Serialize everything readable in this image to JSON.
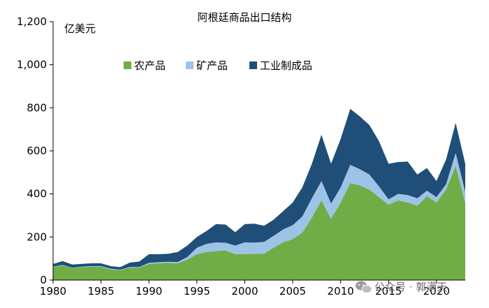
{
  "chart_data": {
    "type": "area",
    "stacked": true,
    "title": "阿根廷商品出口结构",
    "ylabel": "亿美元",
    "xlabel": "",
    "x": [
      1980,
      1981,
      1982,
      1983,
      1984,
      1985,
      1986,
      1987,
      1988,
      1989,
      1990,
      1991,
      1992,
      1993,
      1994,
      1995,
      1996,
      1997,
      1998,
      1999,
      2000,
      2001,
      2002,
      2003,
      2004,
      2005,
      2006,
      2007,
      2008,
      2009,
      2010,
      2011,
      2012,
      2013,
      2014,
      2015,
      2016,
      2017,
      2018,
      2019,
      2020,
      2021,
      2022,
      2023
    ],
    "xlim": [
      1980,
      2023
    ],
    "ylim": [
      0,
      1200
    ],
    "x_ticks": [
      "1980",
      "1985",
      "1990",
      "1995",
      "2000",
      "2005",
      "2010",
      "2015",
      "2020"
    ],
    "y_ticks": [
      "0",
      "200",
      "400",
      "600",
      "800",
      "1,000",
      "1,200"
    ],
    "legend_position": "top",
    "series": [
      {
        "name": "农产品",
        "color": "#70ad47",
        "values": [
          60,
          68,
          55,
          60,
          62,
          62,
          50,
          45,
          58,
          58,
          75,
          78,
          80,
          78,
          95,
          120,
          130,
          135,
          138,
          120,
          120,
          122,
          122,
          150,
          175,
          190,
          220,
          290,
          370,
          285,
          360,
          450,
          440,
          420,
          385,
          350,
          370,
          360,
          345,
          390,
          360,
          420,
          530,
          360
        ]
      },
      {
        "name": "矿产品",
        "color": "#9dc3e6",
        "values": [
          2,
          2,
          2,
          2,
          3,
          3,
          3,
          3,
          3,
          3,
          5,
          5,
          5,
          6,
          12,
          30,
          38,
          40,
          35,
          40,
          55,
          52,
          55,
          55,
          60,
          65,
          75,
          90,
          90,
          70,
          70,
          85,
          75,
          70,
          50,
          25,
          30,
          35,
          35,
          25,
          25,
          25,
          60,
          50
        ]
      },
      {
        "name": "工业制成品",
        "color": "#1f4e79",
        "values": [
          13,
          18,
          15,
          13,
          13,
          13,
          12,
          12,
          20,
          25,
          40,
          37,
          37,
          46,
          53,
          50,
          60,
          85,
          85,
          62,
          85,
          88,
          75,
          75,
          85,
          105,
          135,
          160,
          215,
          185,
          225,
          260,
          245,
          230,
          210,
          165,
          148,
          155,
          110,
          105,
          75,
          115,
          140,
          130
        ]
      }
    ]
  },
  "watermark": {
    "icon": "wechat-icon",
    "text": "公众号 · 郭满天"
  }
}
